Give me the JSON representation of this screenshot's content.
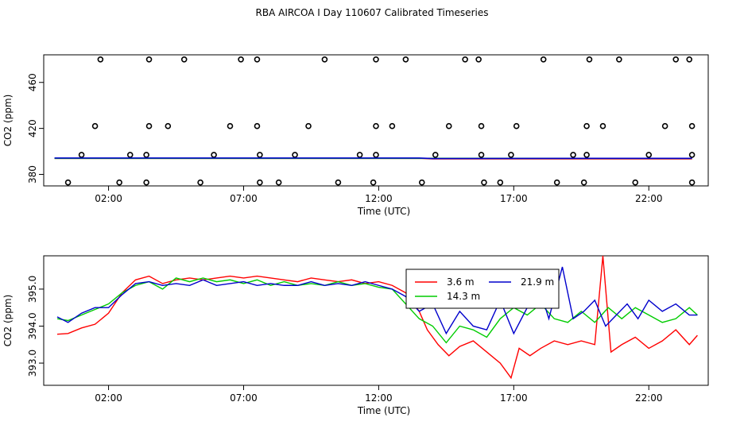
{
  "title": "RBA AIRCOA I  Day 110607  Calibrated Timeseries",
  "colors": {
    "red": "#ff0000",
    "green": "#00cc00",
    "blue": "#0000cc",
    "axis": "#000000"
  },
  "chart_data": [
    {
      "type": "scatter",
      "xlabel": "Time (UTC)",
      "ylabel": "CO2 (ppm)",
      "x_ticks": [
        2,
        7,
        12,
        17,
        22
      ],
      "x_tick_labels": [
        "02:00",
        "07:00",
        "12:00",
        "17:00",
        "22:00"
      ],
      "y_ticks": [
        380,
        420,
        460
      ],
      "y_tick_labels": [
        "380",
        "420",
        "460"
      ],
      "xlim": [
        -0.4,
        24.2
      ],
      "ylim": [
        370,
        484
      ],
      "grid": false,
      "points": [
        [
          0.5,
          373
        ],
        [
          1.0,
          397
        ],
        [
          1.5,
          422
        ],
        [
          1.7,
          480
        ],
        [
          2.4,
          373
        ],
        [
          2.8,
          397
        ],
        [
          3.4,
          373
        ],
        [
          3.4,
          397
        ],
        [
          3.5,
          422
        ],
        [
          3.5,
          480
        ],
        [
          4.2,
          422
        ],
        [
          4.8,
          480
        ],
        [
          5.4,
          373
        ],
        [
          5.9,
          397
        ],
        [
          6.5,
          422
        ],
        [
          6.9,
          480
        ],
        [
          7.5,
          480
        ],
        [
          7.5,
          422
        ],
        [
          7.6,
          397
        ],
        [
          7.6,
          373
        ],
        [
          8.3,
          373
        ],
        [
          8.9,
          397
        ],
        [
          9.4,
          422
        ],
        [
          10.0,
          480
        ],
        [
          10.5,
          373
        ],
        [
          11.3,
          397
        ],
        [
          11.8,
          373
        ],
        [
          11.9,
          397
        ],
        [
          11.9,
          422
        ],
        [
          11.9,
          480
        ],
        [
          12.5,
          422
        ],
        [
          13.0,
          480
        ],
        [
          13.6,
          373
        ],
        [
          14.1,
          397
        ],
        [
          14.6,
          422
        ],
        [
          15.2,
          480
        ],
        [
          15.7,
          480
        ],
        [
          15.8,
          422
        ],
        [
          15.8,
          397
        ],
        [
          15.9,
          373
        ],
        [
          16.5,
          373
        ],
        [
          17.1,
          422
        ],
        [
          16.9,
          397
        ],
        [
          18.1,
          480
        ],
        [
          18.6,
          373
        ],
        [
          19.2,
          397
        ],
        [
          19.6,
          373
        ],
        [
          19.7,
          397
        ],
        [
          19.7,
          422
        ],
        [
          19.8,
          480
        ],
        [
          20.3,
          422
        ],
        [
          20.9,
          480
        ],
        [
          21.5,
          373
        ],
        [
          22.0,
          397
        ],
        [
          22.6,
          422
        ],
        [
          23.0,
          480
        ],
        [
          23.5,
          480
        ],
        [
          23.6,
          422
        ],
        [
          23.6,
          397
        ],
        [
          23.6,
          373
        ]
      ],
      "lines": [
        {
          "color": "#ff0000",
          "values": [
            [
              0,
              394
            ],
            [
              13.5,
              394
            ],
            [
              14,
              393.5
            ],
            [
              20,
              393.5
            ],
            [
              23.6,
              393.5
            ]
          ]
        },
        {
          "color": "#00cc00",
          "values": [
            [
              0,
              394
            ],
            [
              13.5,
              394
            ],
            [
              14,
              394
            ],
            [
              23.6,
              394
            ]
          ]
        },
        {
          "color": "#0000cc",
          "values": [
            [
              0,
              394.2
            ],
            [
              13.5,
              394.2
            ],
            [
              14,
              393.8
            ],
            [
              20,
              394
            ],
            [
              23.6,
              394
            ]
          ]
        }
      ]
    },
    {
      "type": "line",
      "xlabel": "Time (UTC)",
      "ylabel": "CO2 (ppm)",
      "x_ticks": [
        2,
        7,
        12,
        17,
        22
      ],
      "x_tick_labels": [
        "02:00",
        "07:00",
        "12:00",
        "17:00",
        "22:00"
      ],
      "y_ticks": [
        393.0,
        394.0,
        395.0
      ],
      "y_tick_labels": [
        "393.0",
        "394.0",
        "395.0"
      ],
      "xlim": [
        -0.4,
        24.2
      ],
      "ylim": [
        392.4,
        395.9
      ],
      "grid": false,
      "legend": {
        "placement": "top-center",
        "entries": [
          "3.6 m",
          "14.3 m",
          "21.9 m"
        ]
      },
      "series": [
        {
          "name": "3.6 m",
          "color": "#ff0000",
          "values": [
            [
              0.1,
              393.78
            ],
            [
              0.5,
              393.8
            ],
            [
              1.0,
              393.95
            ],
            [
              1.5,
              394.05
            ],
            [
              2.0,
              394.35
            ],
            [
              2.5,
              394.9
            ],
            [
              3.0,
              395.25
            ],
            [
              3.5,
              395.35
            ],
            [
              4.0,
              395.15
            ],
            [
              4.5,
              395.25
            ],
            [
              5.0,
              395.3
            ],
            [
              5.5,
              395.25
            ],
            [
              6.0,
              395.3
            ],
            [
              6.5,
              395.35
            ],
            [
              7.0,
              395.3
            ],
            [
              7.5,
              395.35
            ],
            [
              8.0,
              395.3
            ],
            [
              8.5,
              395.25
            ],
            [
              9.0,
              395.2
            ],
            [
              9.5,
              395.3
            ],
            [
              10.0,
              395.25
            ],
            [
              10.5,
              395.2
            ],
            [
              11.0,
              395.25
            ],
            [
              11.5,
              395.15
            ],
            [
              12.0,
              395.2
            ],
            [
              12.5,
              395.1
            ],
            [
              13.0,
              394.9
            ],
            [
              13.5,
              394.4
            ],
            [
              13.8,
              393.9
            ],
            [
              14.2,
              393.5
            ],
            [
              14.6,
              393.2
            ],
            [
              15.0,
              393.45
            ],
            [
              15.5,
              393.6
            ],
            [
              16.0,
              393.3
            ],
            [
              16.5,
              393.0
            ],
            [
              16.9,
              392.6
            ],
            [
              17.2,
              393.4
            ],
            [
              17.6,
              393.2
            ],
            [
              18.0,
              393.4
            ],
            [
              18.5,
              393.6
            ],
            [
              19.0,
              393.5
            ],
            [
              19.5,
              393.6
            ],
            [
              20.0,
              393.5
            ],
            [
              20.3,
              395.9
            ],
            [
              20.6,
              393.3
            ],
            [
              21.0,
              393.5
            ],
            [
              21.5,
              393.7
            ],
            [
              22.0,
              393.4
            ],
            [
              22.5,
              393.6
            ],
            [
              23.0,
              393.9
            ],
            [
              23.5,
              393.5
            ],
            [
              23.8,
              393.75
            ]
          ]
        },
        {
          "name": "14.3 m",
          "color": "#00cc00",
          "values": [
            [
              0.1,
              394.2
            ],
            [
              0.5,
              394.15
            ],
            [
              1.0,
              394.3
            ],
            [
              1.5,
              394.45
            ],
            [
              2.0,
              394.6
            ],
            [
              2.5,
              394.9
            ],
            [
              3.0,
              395.1
            ],
            [
              3.5,
              395.2
            ],
            [
              4.0,
              395.0
            ],
            [
              4.5,
              395.3
            ],
            [
              5.0,
              395.2
            ],
            [
              5.5,
              395.3
            ],
            [
              6.0,
              395.2
            ],
            [
              6.5,
              395.25
            ],
            [
              7.0,
              395.15
            ],
            [
              7.5,
              395.25
            ],
            [
              8.0,
              395.1
            ],
            [
              8.5,
              395.2
            ],
            [
              9.0,
              395.1
            ],
            [
              9.5,
              395.15
            ],
            [
              10.0,
              395.1
            ],
            [
              10.5,
              395.2
            ],
            [
              11.0,
              395.1
            ],
            [
              11.5,
              395.15
            ],
            [
              12.0,
              395.05
            ],
            [
              12.5,
              395.0
            ],
            [
              13.0,
              394.6
            ],
            [
              13.5,
              394.2
            ],
            [
              14.0,
              394.0
            ],
            [
              14.5,
              393.55
            ],
            [
              15.0,
              394.0
            ],
            [
              15.5,
              393.9
            ],
            [
              16.0,
              393.7
            ],
            [
              16.5,
              394.2
            ],
            [
              17.0,
              394.5
            ],
            [
              17.5,
              394.3
            ],
            [
              18.0,
              394.6
            ],
            [
              18.5,
              394.2
            ],
            [
              19.0,
              394.1
            ],
            [
              19.5,
              394.4
            ],
            [
              20.0,
              394.1
            ],
            [
              20.5,
              394.5
            ],
            [
              21.0,
              394.2
            ],
            [
              21.5,
              394.5
            ],
            [
              22.0,
              394.3
            ],
            [
              22.5,
              394.1
            ],
            [
              23.0,
              394.2
            ],
            [
              23.5,
              394.5
            ],
            [
              23.8,
              394.3
            ]
          ]
        },
        {
          "name": "21.9 m",
          "color": "#0000cc",
          "values": [
            [
              0.1,
              394.25
            ],
            [
              0.5,
              394.1
            ],
            [
              1.0,
              394.35
            ],
            [
              1.5,
              394.5
            ],
            [
              2.0,
              394.5
            ],
            [
              2.5,
              394.85
            ],
            [
              3.0,
              395.15
            ],
            [
              3.5,
              395.2
            ],
            [
              4.0,
              395.1
            ],
            [
              4.5,
              395.15
            ],
            [
              5.0,
              395.1
            ],
            [
              5.5,
              395.25
            ],
            [
              6.0,
              395.1
            ],
            [
              6.5,
              395.15
            ],
            [
              7.0,
              395.2
            ],
            [
              7.5,
              395.1
            ],
            [
              8.0,
              395.15
            ],
            [
              8.5,
              395.1
            ],
            [
              9.0,
              395.1
            ],
            [
              9.5,
              395.2
            ],
            [
              10.0,
              395.1
            ],
            [
              10.5,
              395.15
            ],
            [
              11.0,
              395.1
            ],
            [
              11.5,
              395.2
            ],
            [
              12.0,
              395.1
            ],
            [
              12.5,
              395.0
            ],
            [
              13.0,
              394.8
            ],
            [
              13.5,
              394.4
            ],
            [
              14.0,
              394.6
            ],
            [
              14.5,
              393.8
            ],
            [
              15.0,
              394.4
            ],
            [
              15.5,
              394.0
            ],
            [
              16.0,
              393.9
            ],
            [
              16.5,
              394.7
            ],
            [
              17.0,
              393.8
            ],
            [
              17.5,
              394.5
            ],
            [
              18.0,
              394.9
            ],
            [
              18.3,
              394.2
            ],
            [
              18.8,
              395.6
            ],
            [
              19.2,
              394.2
            ],
            [
              19.6,
              394.4
            ],
            [
              20.0,
              394.7
            ],
            [
              20.4,
              394.0
            ],
            [
              20.8,
              394.3
            ],
            [
              21.2,
              394.6
            ],
            [
              21.6,
              394.2
            ],
            [
              22.0,
              394.7
            ],
            [
              22.5,
              394.4
            ],
            [
              23.0,
              394.6
            ],
            [
              23.5,
              394.3
            ],
            [
              23.8,
              394.3
            ]
          ]
        }
      ]
    }
  ]
}
